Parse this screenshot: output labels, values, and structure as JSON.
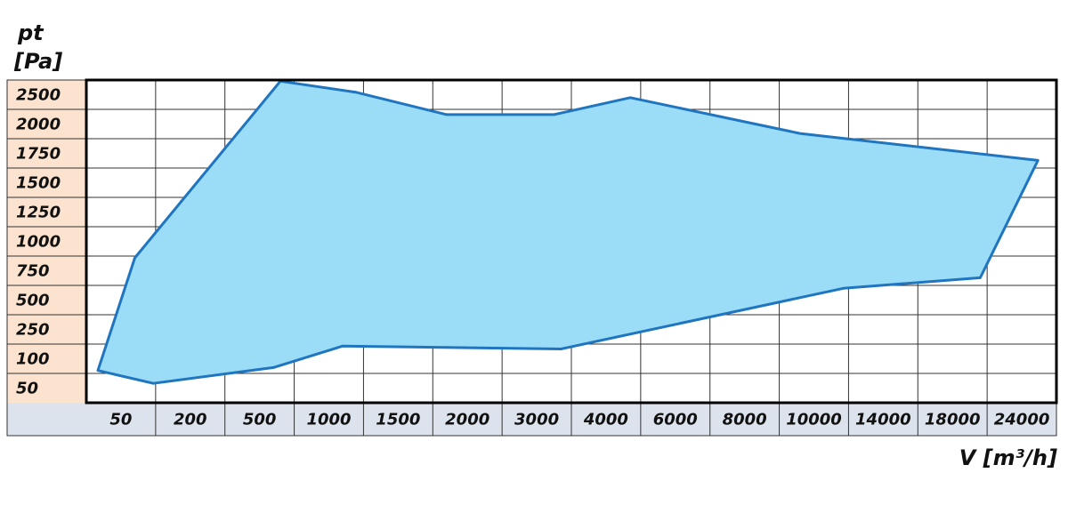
{
  "chart_data": {
    "type": "area",
    "y_title": [
      "pt",
      "[Pa]"
    ],
    "x_title": "V [m³/h]",
    "xticks": [
      50,
      200,
      500,
      1000,
      1500,
      2000,
      3000,
      4000,
      6000,
      8000,
      10000,
      14000,
      18000,
      24000
    ],
    "yticks": [
      50,
      100,
      250,
      500,
      750,
      1000,
      1250,
      1500,
      1750,
      2000,
      2500
    ],
    "x": [
      0,
      80,
      650,
      1200,
      1850,
      3250,
      4700,
      9600,
      25400,
      20400,
      11700,
      3350,
      1100,
      600,
      120
    ],
    "values": [
      80,
      860,
      2730,
      2540,
      2160,
      2160,
      2450,
      1920,
      1690,
      690,
      600,
      150,
      165,
      85,
      58
    ],
    "color": "#1f75c0",
    "fill": "#9bdcf7",
    "grid": true
  }
}
